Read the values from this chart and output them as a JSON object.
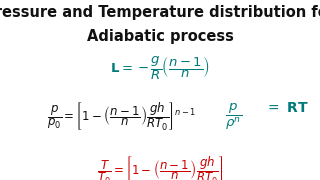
{
  "title_line1": "Pressure and Temperature distribution for",
  "title_line2": "Adiabatic process",
  "title_color": "#000000",
  "title_fontsize": 10.5,
  "bg_color": "#ffffff",
  "teal_color": "#007b7b",
  "black_color": "#111111",
  "red_color": "#cc0000",
  "figsize": [
    3.2,
    1.8
  ],
  "dpi": 100
}
